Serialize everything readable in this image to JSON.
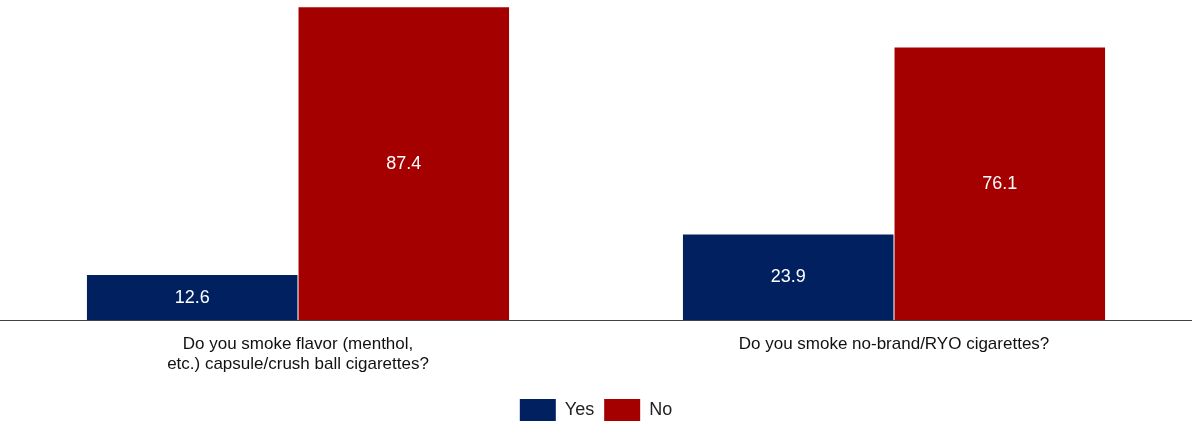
{
  "chart_data": {
    "type": "bar",
    "categories": [
      "Do you smoke flavor (menthol, etc.) capsule/crush ball cigarettes?",
      "Do you smoke no-brand/RYO cigarettes?"
    ],
    "series": [
      {
        "name": "Yes",
        "color": "#002060",
        "values": [
          12.6,
          23.9
        ]
      },
      {
        "name": "No",
        "color": "#a50000",
        "values": [
          87.4,
          76.1
        ]
      }
    ],
    "ylim": [
      0,
      88
    ],
    "data_labels": true,
    "grid": false,
    "legend": "bottom",
    "tick_labels": "x"
  }
}
